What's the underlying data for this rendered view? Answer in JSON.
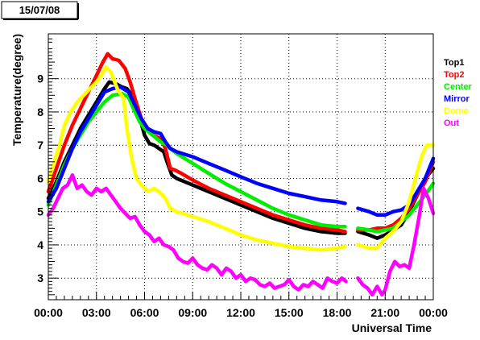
{
  "date_label": "15/07/08",
  "chart_data": {
    "type": "scatter",
    "title": "",
    "xlabel": "Universal Time",
    "ylabel": "Temperature(degree)",
    "xlim": [
      0,
      24
    ],
    "ylim": [
      2.35,
      10.35
    ],
    "x_ticks": [
      0,
      3,
      6,
      9,
      12,
      15,
      18,
      21,
      24
    ],
    "x_tick_labels": [
      "00:00",
      "03:00",
      "06:00",
      "09:00",
      "12:00",
      "15:00",
      "18:00",
      "21:00",
      "00:00"
    ],
    "y_ticks": [
      3,
      4,
      5,
      6,
      7,
      8,
      9
    ],
    "y_tick_labels": [
      "3",
      "4",
      "5",
      "6",
      "7",
      "8",
      "9"
    ],
    "grid": true,
    "legend_position": "right",
    "gap_hours": [
      18.55,
      19.25
    ],
    "series": [
      {
        "name": "Top1",
        "color": "#000000",
        "x": [
          0,
          0.5,
          1,
          1.5,
          2,
          2.5,
          3,
          3.5,
          3.8,
          4.2,
          4.6,
          4.9,
          5.2,
          5.6,
          6.0,
          6.3,
          6.6,
          7.2,
          7.4,
          7.7,
          8.0,
          9,
          10,
          11,
          12,
          13,
          14,
          15,
          16,
          17,
          18,
          18.5,
          19.3,
          20,
          20.5,
          21,
          21.5,
          22,
          22.5,
          23,
          23.5,
          24
        ],
        "y": [
          5.4,
          5.9,
          6.5,
          7.0,
          7.5,
          7.9,
          8.3,
          8.7,
          8.9,
          8.85,
          8.75,
          8.7,
          8.5,
          8.0,
          7.3,
          7.05,
          7.0,
          6.8,
          6.5,
          6.1,
          6.0,
          5.8,
          5.6,
          5.4,
          5.2,
          5.0,
          4.8,
          4.65,
          4.5,
          4.4,
          4.35,
          4.35,
          4.4,
          4.3,
          4.2,
          4.3,
          4.45,
          4.6,
          5.0,
          5.5,
          6.0,
          6.3
        ]
      },
      {
        "name": "Top2",
        "color": "#ff0000",
        "x": [
          0,
          0.5,
          1,
          1.5,
          2,
          2.5,
          3,
          3.4,
          3.7,
          4.0,
          4.4,
          4.8,
          5.1,
          5.4,
          5.8,
          6.1,
          6.5,
          7.0,
          7.3,
          7.6,
          7.9,
          8.3,
          9,
          10,
          11,
          12,
          13,
          14,
          15,
          16,
          17,
          18,
          18.5,
          19.3,
          20,
          20.5,
          21,
          21.5,
          22,
          22.5,
          23,
          23.5,
          24
        ],
        "y": [
          5.6,
          6.3,
          7.0,
          7.6,
          8.1,
          8.6,
          9.1,
          9.5,
          9.75,
          9.6,
          9.55,
          9.3,
          8.9,
          8.4,
          7.8,
          7.5,
          7.3,
          7.2,
          6.9,
          6.3,
          6.25,
          6.15,
          5.95,
          5.7,
          5.5,
          5.3,
          5.1,
          4.9,
          4.75,
          4.6,
          4.5,
          4.45,
          4.4,
          4.45,
          4.45,
          4.5,
          4.5,
          4.6,
          4.8,
          5.1,
          5.5,
          5.9,
          6.5
        ]
      },
      {
        "name": "Center",
        "color": "#00ee00",
        "x": [
          0,
          0.5,
          1,
          1.5,
          2,
          2.5,
          3,
          3.5,
          4.0,
          4.6,
          5.0,
          5.3,
          5.7,
          6.0,
          6.5,
          7.0,
          7.4,
          7.6,
          8.0,
          9,
          10,
          11,
          12,
          13,
          14,
          15,
          16,
          17,
          18,
          18.5,
          19.3,
          20,
          20.5,
          21,
          21.5,
          22,
          22.5,
          23,
          23.5,
          24
        ],
        "y": [
          5.2,
          5.8,
          6.4,
          6.9,
          7.3,
          7.7,
          8.0,
          8.3,
          8.5,
          8.55,
          8.45,
          8.1,
          7.7,
          7.5,
          7.3,
          7.1,
          7.0,
          6.9,
          6.75,
          6.45,
          6.15,
          5.85,
          5.6,
          5.35,
          5.1,
          4.9,
          4.75,
          4.6,
          4.55,
          4.55,
          4.5,
          4.45,
          4.4,
          4.45,
          4.5,
          4.7,
          4.9,
          5.2,
          5.5,
          5.85
        ]
      },
      {
        "name": "Mirror",
        "color": "#0000ff",
        "x": [
          0,
          0.5,
          1,
          1.5,
          2,
          2.5,
          3,
          3.5,
          4.0,
          4.5,
          5.0,
          5.4,
          5.8,
          6.2,
          6.6,
          7.0,
          7.3,
          7.6,
          8.0,
          9,
          10,
          11,
          12,
          13,
          14,
          15,
          16,
          17,
          18,
          18.5,
          19.3,
          20,
          20.5,
          21,
          21.5,
          22,
          22.5,
          23,
          23.5,
          24
        ],
        "y": [
          5.3,
          5.7,
          6.3,
          6.9,
          7.4,
          7.8,
          8.2,
          8.6,
          8.7,
          8.75,
          8.6,
          8.2,
          7.8,
          7.5,
          7.4,
          7.35,
          7.1,
          6.9,
          6.8,
          6.65,
          6.45,
          6.25,
          6.05,
          5.85,
          5.7,
          5.55,
          5.45,
          5.35,
          5.3,
          5.25,
          5.1,
          5.0,
          4.9,
          4.9,
          5.0,
          5.05,
          5.2,
          5.6,
          6.0,
          6.6
        ]
      },
      {
        "name": "Dome",
        "color": "#ffff00",
        "x": [
          0,
          0.3,
          0.7,
          1.0,
          1.4,
          1.8,
          2.2,
          2.6,
          3.0,
          3.3,
          3.6,
          3.9,
          4.3,
          4.7,
          4.9,
          5.2,
          5.5,
          5.8,
          6.2,
          6.6,
          6.9,
          7.1,
          7.3,
          7.6,
          8.0,
          9,
          10,
          11,
          12,
          13,
          14,
          15,
          16,
          17,
          18,
          18.5,
          19.3,
          20,
          20.5,
          21,
          21.5,
          22,
          22.5,
          23,
          23.3,
          23.6,
          24
        ],
        "y": [
          5.9,
          6.4,
          7.0,
          7.6,
          8.0,
          8.3,
          8.5,
          8.7,
          8.9,
          9.1,
          9.35,
          9.2,
          8.7,
          8.4,
          7.5,
          6.6,
          6.0,
          5.8,
          5.6,
          5.7,
          5.6,
          5.5,
          5.4,
          5.1,
          5.0,
          4.85,
          4.7,
          4.5,
          4.3,
          4.15,
          4.05,
          3.95,
          3.9,
          3.85,
          3.9,
          3.95,
          4.0,
          3.9,
          3.9,
          4.2,
          4.4,
          4.7,
          5.3,
          6.2,
          6.7,
          7.0,
          7.0
        ]
      },
      {
        "name": "Out",
        "color": "#ff00ff",
        "x": [
          0,
          0.3,
          0.6,
          0.9,
          1.2,
          1.5,
          1.8,
          2.1,
          2.4,
          2.7,
          3.0,
          3.3,
          3.6,
          3.9,
          4.2,
          4.5,
          4.8,
          5.1,
          5.4,
          5.7,
          6.0,
          6.3,
          6.6,
          6.9,
          7.2,
          7.5,
          7.8,
          8.1,
          8.4,
          8.7,
          9.0,
          9.3,
          9.6,
          9.9,
          10.2,
          10.5,
          10.8,
          11.1,
          11.4,
          11.7,
          12.0,
          12.3,
          12.6,
          12.9,
          13.2,
          13.5,
          13.8,
          14.1,
          14.4,
          14.7,
          15.0,
          15.3,
          15.6,
          15.9,
          16.2,
          16.5,
          16.8,
          17.1,
          17.4,
          17.7,
          18.0,
          18.3,
          18.55,
          19.3,
          19.6,
          19.9,
          20.2,
          20.5,
          20.8,
          21.0,
          21.3,
          21.6,
          21.9,
          22.2,
          22.5,
          22.8,
          23.1,
          23.4,
          23.7,
          24.0
        ],
        "y": [
          4.9,
          5.1,
          5.4,
          5.7,
          5.8,
          6.1,
          5.7,
          5.8,
          5.6,
          5.5,
          5.7,
          5.6,
          5.7,
          5.5,
          5.3,
          5.1,
          4.95,
          4.8,
          4.85,
          4.6,
          4.4,
          4.3,
          4.1,
          4.2,
          4.0,
          3.95,
          3.85,
          3.6,
          3.5,
          3.45,
          3.6,
          3.4,
          3.3,
          3.25,
          3.4,
          3.3,
          3.1,
          3.3,
          3.2,
          3.0,
          3.1,
          2.9,
          3.0,
          2.95,
          2.8,
          2.75,
          2.85,
          2.7,
          2.75,
          2.8,
          2.95,
          2.75,
          2.65,
          2.8,
          2.75,
          2.9,
          2.8,
          2.7,
          3.0,
          2.9,
          2.85,
          3.0,
          2.9,
          3.0,
          2.8,
          2.7,
          2.5,
          2.75,
          2.5,
          2.65,
          3.2,
          3.5,
          3.35,
          3.4,
          3.3,
          4.0,
          4.8,
          5.7,
          5.4,
          4.95
        ]
      }
    ]
  }
}
